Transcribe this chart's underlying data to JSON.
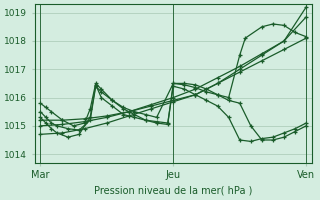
{
  "bg_color": "#d4ede0",
  "grid_color": "#a8c8b4",
  "line_color": "#1a5c2a",
  "ylabel_ticks": [
    1014,
    1015,
    1016,
    1017,
    1018,
    1019
  ],
  "xtick_labels": [
    "Mar",
    "Jeu",
    "Ven"
  ],
  "xtick_positions": [
    0,
    48,
    96
  ],
  "xlabel": "Pression niveau de la mer( hPa )",
  "xlim": [
    -2,
    98
  ],
  "ylim": [
    1013.7,
    1019.3
  ],
  "series": [
    {
      "x": [
        0,
        8,
        16,
        24,
        32,
        40,
        48,
        56,
        64,
        72,
        80,
        88,
        96
      ],
      "y": [
        1014.7,
        1014.75,
        1014.9,
        1015.1,
        1015.35,
        1015.6,
        1015.85,
        1016.1,
        1016.5,
        1017.0,
        1017.5,
        1018.0,
        1019.2
      ]
    },
    {
      "x": [
        0,
        8,
        16,
        24,
        32,
        40,
        48,
        56,
        64,
        72,
        80,
        88,
        96
      ],
      "y": [
        1015.0,
        1015.05,
        1015.15,
        1015.3,
        1015.5,
        1015.75,
        1016.0,
        1016.3,
        1016.7,
        1017.1,
        1017.55,
        1018.0,
        1018.85
      ]
    },
    {
      "x": [
        0,
        8,
        16,
        24,
        32,
        40,
        48,
        56,
        64,
        72,
        80,
        88,
        96
      ],
      "y": [
        1015.2,
        1015.2,
        1015.25,
        1015.35,
        1015.5,
        1015.7,
        1015.9,
        1016.1,
        1016.5,
        1016.9,
        1017.3,
        1017.7,
        1018.1
      ]
    },
    {
      "x": [
        0,
        2,
        4,
        6,
        10,
        14,
        18,
        20,
        22,
        26,
        30,
        34,
        38,
        42,
        46,
        48,
        52,
        56,
        60,
        64,
        68,
        72,
        76,
        80,
        84,
        88,
        92,
        96
      ],
      "y": [
        1015.5,
        1015.3,
        1015.1,
        1015.0,
        1014.9,
        1014.85,
        1015.2,
        1016.4,
        1016.2,
        1015.9,
        1015.6,
        1015.4,
        1015.2,
        1015.1,
        1015.05,
        1016.5,
        1016.45,
        1016.35,
        1016.2,
        1016.1,
        1015.9,
        1015.8,
        1015.0,
        1014.5,
        1014.5,
        1014.6,
        1014.8,
        1015.0
      ]
    },
    {
      "x": [
        0,
        2,
        4,
        6,
        10,
        14,
        18,
        20,
        22,
        26,
        30,
        34,
        38,
        42,
        46,
        48,
        52,
        56,
        60,
        64,
        68,
        72,
        76,
        80,
        84,
        88,
        92,
        96
      ],
      "y": [
        1015.3,
        1015.1,
        1014.9,
        1014.75,
        1014.6,
        1014.7,
        1015.3,
        1016.45,
        1016.0,
        1015.7,
        1015.4,
        1015.3,
        1015.2,
        1015.15,
        1015.1,
        1016.4,
        1016.3,
        1016.1,
        1015.9,
        1015.7,
        1015.3,
        1014.5,
        1014.45,
        1014.55,
        1014.6,
        1014.75,
        1014.9,
        1015.1
      ]
    },
    {
      "x": [
        0,
        2,
        4,
        8,
        12,
        16,
        18,
        20,
        22,
        26,
        30,
        34,
        38,
        42,
        48,
        52,
        56,
        60,
        64,
        68,
        72,
        74,
        80,
        84,
        88,
        92,
        96
      ],
      "y": [
        1015.8,
        1015.65,
        1015.5,
        1015.2,
        1015.0,
        1015.1,
        1015.6,
        1016.5,
        1016.3,
        1015.9,
        1015.65,
        1015.5,
        1015.4,
        1015.3,
        1016.5,
        1016.5,
        1016.45,
        1016.3,
        1016.1,
        1016.0,
        1017.5,
        1018.1,
        1018.5,
        1018.6,
        1018.55,
        1018.3,
        1018.15
      ]
    }
  ]
}
